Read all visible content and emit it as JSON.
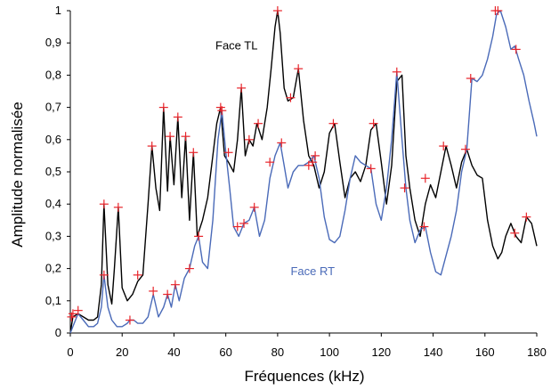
{
  "chart_data": {
    "type": "line",
    "xlabel": "Fréquences (kHz)",
    "ylabel": "Amplitude normalisée",
    "xlim": [
      0,
      180
    ],
    "ylim": [
      0,
      1
    ],
    "xticks": [
      0,
      20,
      40,
      60,
      80,
      100,
      120,
      140,
      160,
      180
    ],
    "yticks": [
      0,
      0.1,
      0.2,
      0.3,
      0.4,
      0.5,
      0.6,
      0.7,
      0.8,
      0.9,
      1
    ],
    "ytick_labels": [
      "0",
      "0,1",
      "0,2",
      "0,3",
      "0,4",
      "0,5",
      "0,6",
      "0,7",
      "0,8",
      "0,9",
      "1"
    ],
    "grid": false,
    "series": [
      {
        "name": "Face TL",
        "color": "#000000",
        "x": [
          0,
          1,
          3,
          5,
          7,
          9,
          10.5,
          12,
          13,
          14.5,
          16,
          17,
          18.5,
          20,
          22,
          24,
          26,
          28,
          30,
          31.5,
          33,
          34.5,
          36,
          37.5,
          38.5,
          40,
          41.5,
          43,
          44.5,
          46,
          47.5,
          49,
          51,
          53,
          55,
          56.5,
          58,
          59.5,
          61,
          63,
          64.5,
          66,
          67.5,
          69,
          70.5,
          72,
          74,
          76,
          77.5,
          79,
          80,
          81,
          82.5,
          84,
          86,
          88,
          90,
          92,
          94,
          96,
          98,
          100,
          102,
          104,
          106,
          108,
          110,
          112,
          114,
          116,
          118,
          120,
          122,
          124,
          126,
          128,
          129.5,
          131,
          133,
          135,
          137,
          139,
          141,
          143,
          145,
          147,
          149,
          151,
          153,
          155,
          157,
          159,
          161,
          163,
          165,
          166.5,
          168,
          170,
          172,
          174,
          176,
          178,
          180
        ],
        "y": [
          0,
          0.05,
          0.06,
          0.05,
          0.04,
          0.04,
          0.05,
          0.15,
          0.4,
          0.15,
          0.09,
          0.2,
          0.39,
          0.14,
          0.1,
          0.12,
          0.16,
          0.18,
          0.4,
          0.58,
          0.45,
          0.38,
          0.7,
          0.44,
          0.61,
          0.46,
          0.67,
          0.42,
          0.61,
          0.35,
          0.56,
          0.3,
          0.35,
          0.42,
          0.55,
          0.65,
          0.7,
          0.55,
          0.53,
          0.5,
          0.6,
          0.76,
          0.55,
          0.6,
          0.58,
          0.65,
          0.6,
          0.7,
          0.82,
          0.95,
          1.0,
          0.93,
          0.76,
          0.72,
          0.73,
          0.82,
          0.66,
          0.55,
          0.52,
          0.45,
          0.5,
          0.62,
          0.65,
          0.53,
          0.42,
          0.48,
          0.5,
          0.47,
          0.52,
          0.63,
          0.65,
          0.53,
          0.4,
          0.52,
          0.78,
          0.8,
          0.55,
          0.45,
          0.35,
          0.3,
          0.4,
          0.46,
          0.42,
          0.5,
          0.58,
          0.52,
          0.45,
          0.53,
          0.57,
          0.52,
          0.49,
          0.48,
          0.35,
          0.27,
          0.23,
          0.25,
          0.3,
          0.34,
          0.3,
          0.28,
          0.36,
          0.34,
          0.27
        ]
      },
      {
        "name": "Face RT",
        "color": "#4a6ab8",
        "x": [
          0,
          1,
          3,
          5,
          7,
          9,
          10.5,
          12,
          13,
          14.5,
          16,
          18,
          20,
          22,
          23,
          24.5,
          26,
          28,
          30,
          32,
          34,
          36,
          37.5,
          39,
          40.5,
          42,
          44,
          46,
          48,
          49.5,
          51,
          53,
          55,
          57,
          58.5,
          60,
          61.5,
          63,
          65,
          67,
          69,
          71,
          73,
          75,
          77,
          79,
          81,
          82.5,
          84,
          86,
          88,
          90,
          92,
          94,
          96,
          98,
          100,
          102,
          104,
          106,
          108,
          110,
          112,
          114,
          116,
          118,
          120,
          122,
          124,
          126,
          128,
          129.5,
          131,
          133,
          135,
          137,
          139,
          141,
          143,
          145,
          147,
          149,
          151,
          153,
          155,
          157,
          159,
          161,
          163,
          164.5,
          166,
          168,
          170,
          171.5,
          173,
          175,
          177,
          179,
          180
        ],
        "y": [
          0,
          0.02,
          0.06,
          0.04,
          0.02,
          0.02,
          0.03,
          0.08,
          0.18,
          0.08,
          0.04,
          0.02,
          0.02,
          0.03,
          0.04,
          0.04,
          0.03,
          0.03,
          0.05,
          0.12,
          0.05,
          0.08,
          0.12,
          0.08,
          0.15,
          0.1,
          0.17,
          0.2,
          0.27,
          0.3,
          0.22,
          0.2,
          0.35,
          0.6,
          0.69,
          0.56,
          0.45,
          0.33,
          0.3,
          0.34,
          0.35,
          0.39,
          0.3,
          0.35,
          0.48,
          0.55,
          0.59,
          0.52,
          0.45,
          0.5,
          0.52,
          0.52,
          0.53,
          0.55,
          0.48,
          0.36,
          0.29,
          0.28,
          0.3,
          0.38,
          0.48,
          0.55,
          0.53,
          0.52,
          0.51,
          0.4,
          0.35,
          0.45,
          0.6,
          0.81,
          0.6,
          0.45,
          0.35,
          0.28,
          0.32,
          0.33,
          0.25,
          0.19,
          0.18,
          0.24,
          0.3,
          0.38,
          0.5,
          0.57,
          0.79,
          0.78,
          0.8,
          0.85,
          0.92,
          0.99,
          1.0,
          0.95,
          0.88,
          0.89,
          0.85,
          0.8,
          0.72,
          0.65,
          0.61
        ]
      }
    ],
    "markers": {
      "symbol": "+",
      "color": "#e8242a",
      "points": [
        [
          0.5,
          0.05
        ],
        [
          1,
          0.06
        ],
        [
          3,
          0.07
        ],
        [
          13,
          0.4
        ],
        [
          13,
          0.18
        ],
        [
          18.5,
          0.39
        ],
        [
          23,
          0.04
        ],
        [
          26,
          0.18
        ],
        [
          31.5,
          0.58
        ],
        [
          32,
          0.13
        ],
        [
          36,
          0.7
        ],
        [
          37.5,
          0.12
        ],
        [
          38.5,
          0.61
        ],
        [
          40.5,
          0.15
        ],
        [
          41.5,
          0.67
        ],
        [
          44.5,
          0.61
        ],
        [
          46,
          0.2
        ],
        [
          47.5,
          0.56
        ],
        [
          49.5,
          0.3
        ],
        [
          58,
          0.7
        ],
        [
          58.5,
          0.69
        ],
        [
          61,
          0.56
        ],
        [
          64.5,
          0.33
        ],
        [
          66,
          0.76
        ],
        [
          67,
          0.34
        ],
        [
          69,
          0.6
        ],
        [
          71,
          0.39
        ],
        [
          72.5,
          0.65
        ],
        [
          77,
          0.53
        ],
        [
          80,
          1.0
        ],
        [
          81.5,
          0.59
        ],
        [
          85,
          0.73
        ],
        [
          88,
          0.82
        ],
        [
          92,
          0.52
        ],
        [
          93.5,
          0.53
        ],
        [
          94.5,
          0.55
        ],
        [
          101.5,
          0.65
        ],
        [
          116,
          0.51
        ],
        [
          117,
          0.65
        ],
        [
          126,
          0.81
        ],
        [
          129,
          0.45
        ],
        [
          136.5,
          0.33
        ],
        [
          137,
          0.48
        ],
        [
          144,
          0.58
        ],
        [
          152.5,
          0.57
        ],
        [
          154.5,
          0.79
        ],
        [
          164,
          1.0
        ],
        [
          165,
          1.0
        ],
        [
          171.5,
          0.31
        ],
        [
          172,
          0.88
        ],
        [
          176,
          0.36
        ]
      ]
    },
    "annotations": [
      {
        "text": "Face TL",
        "x": 56,
        "y": 0.88,
        "color": "#000000"
      },
      {
        "text": "Face RT",
        "x": 85,
        "y": 0.18,
        "color": "#4a6ab8"
      }
    ]
  }
}
